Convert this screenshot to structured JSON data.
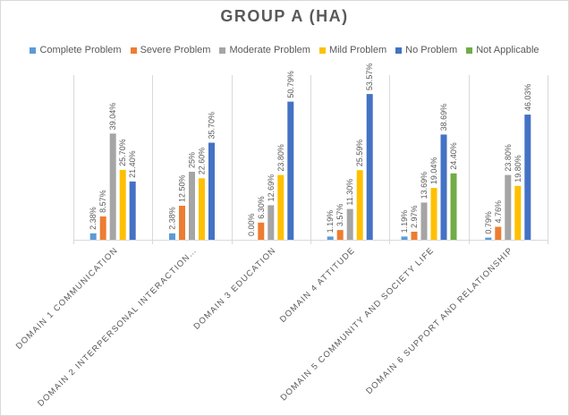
{
  "chart_data": {
    "type": "bar",
    "title": "GROUP A (HA)",
    "categories": [
      "DOMAIN 1 COMMUNICATION",
      "DOMAIN 2 INTERPERSONAL INTERACTION…",
      "DOMAIN 3 EDUCATION",
      "DOMAIN 4 ATTITUDE",
      "DOMAIN 5 COMMUNITY AND SOCIETY LIFE",
      "DOMAIN 6 SUPPORT AND RELATIONSHIP"
    ],
    "series": [
      {
        "name": "Complete Problem",
        "color": "#5b9bd5",
        "values": [
          2.38,
          2.38,
          0.0,
          1.19,
          1.19,
          0.79
        ],
        "labels": [
          "2.38%",
          "2.38%",
          "0.00%",
          "1.19%",
          "1.19%",
          "0.79%"
        ]
      },
      {
        "name": "Severe Problem",
        "color": "#ed7d31",
        "values": [
          8.57,
          12.5,
          6.3,
          3.57,
          2.97,
          4.76
        ],
        "labels": [
          "8.57%",
          "12.50%",
          "6.30%",
          "3.57%",
          "2.97%",
          "4.76%"
        ]
      },
      {
        "name": "Moderate Problem",
        "color": "#a5a5a5",
        "values": [
          39.04,
          25,
          12.69,
          11.3,
          13.69,
          23.8
        ],
        "labels": [
          "39.04%",
          "25%",
          "12.69%",
          "11.30%",
          "13.69%",
          "23.80%"
        ]
      },
      {
        "name": "Mild Problem",
        "color": "#ffc000",
        "values": [
          25.7,
          22.6,
          23.8,
          25.59,
          19.04,
          19.8
        ],
        "labels": [
          "25.70%",
          "22.60%",
          "23.80%",
          "25.59%",
          "19.04%",
          "19.80%"
        ]
      },
      {
        "name": "No Problem",
        "color": "#4472c4",
        "values": [
          21.4,
          35.7,
          50.79,
          53.57,
          38.69,
          46.03
        ],
        "labels": [
          "21.40%",
          "35.70%",
          "50.79%",
          "53.57%",
          "38.69%",
          "46.03%"
        ]
      },
      {
        "name": "Not Applicable",
        "color": "#70ad47",
        "values": [
          null,
          null,
          null,
          null,
          24.4,
          null
        ],
        "labels": [
          "",
          "",
          "",
          "",
          "24.40%",
          ""
        ]
      }
    ],
    "ylim": [
      0,
      60
    ],
    "legend_position": "top"
  }
}
